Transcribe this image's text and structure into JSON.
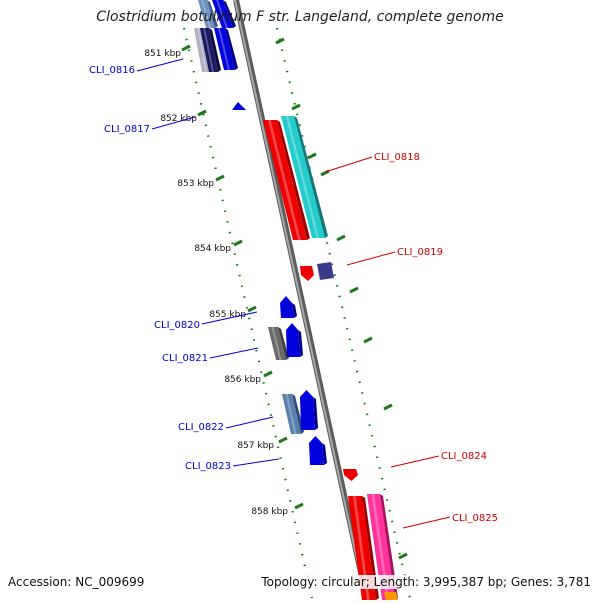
{
  "title": "Clostridium botulinum F str. Langeland, complete genome",
  "accession_text": "Accession: NC_009699",
  "topology_text": "Topology: circular; Length: 3,995,387 bp; Genes: 3,781",
  "scale": {
    "unit": "kbp",
    "ticks": [
      "851 kbp",
      "852 kbp",
      "853 kbp",
      "854 kbp",
      "855 kbp",
      "856 kbp",
      "857 kbp",
      "858 kbp"
    ]
  },
  "genes_left": [
    {
      "label": "CLI_0816",
      "color": "#0000CD"
    },
    {
      "label": "CLI_0817",
      "color": "#0000CD"
    },
    {
      "label": "CLI_0820",
      "color": "#0000CD"
    },
    {
      "label": "CLI_0821",
      "color": "#0000CD"
    },
    {
      "label": "CLI_0822",
      "color": "#0000CD"
    },
    {
      "label": "CLI_0823",
      "color": "#0000CD"
    }
  ],
  "genes_right": [
    {
      "label": "CLI_0818",
      "color": "#CC0000"
    },
    {
      "label": "CLI_0819",
      "color": "#CC0000"
    },
    {
      "label": "CLI_0824",
      "color": "#CC0000"
    },
    {
      "label": "CLI_0825",
      "color": "#CC0000"
    }
  ],
  "colors": {
    "backbone": "#8a8a8a",
    "ruler": "#1a7a1a",
    "left_label": "#0000CD",
    "right_label": "#CC0000"
  }
}
